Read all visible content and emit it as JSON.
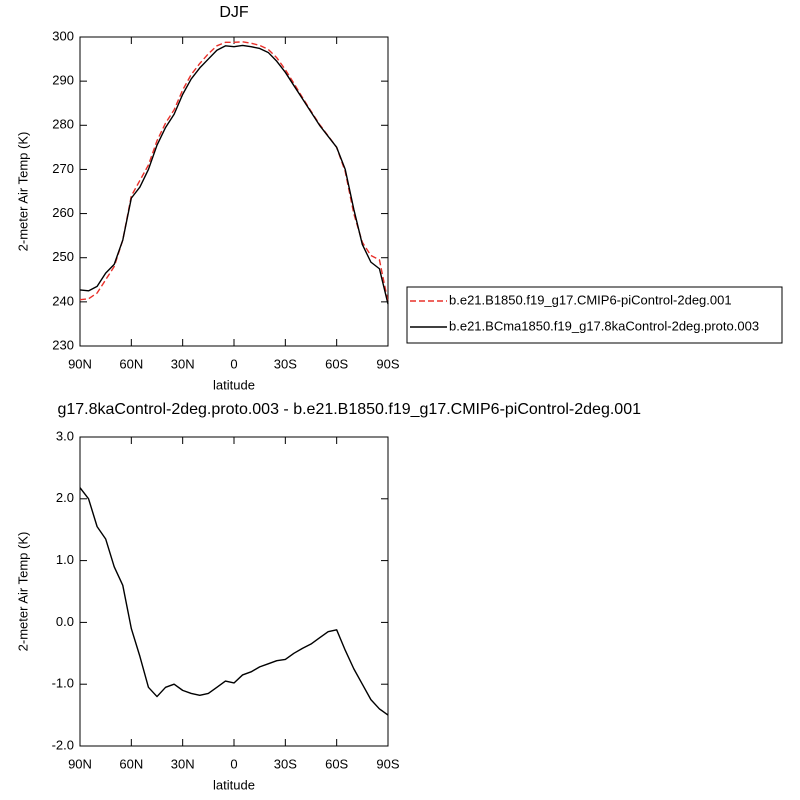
{
  "chart_data": [
    {
      "type": "line",
      "title": "DJF",
      "xlabel": "latitude",
      "ylabel": "2-meter Air Temp (K)",
      "x": [
        90,
        85,
        80,
        75,
        70,
        65,
        60,
        55,
        50,
        45,
        40,
        35,
        30,
        25,
        20,
        15,
        10,
        5,
        0,
        -5,
        -10,
        -15,
        -20,
        -25,
        -30,
        -35,
        -40,
        -45,
        -50,
        -55,
        -60,
        -65,
        -70,
        -75,
        -80,
        -85,
        -90
      ],
      "series": [
        {
          "name": "b.e21.B1850.f19_g17.CMIP6-piControl-2deg.001",
          "color": "#e8302a",
          "dashed": true,
          "values": [
            240.5,
            240.7,
            242,
            245,
            248,
            254,
            264,
            267.5,
            271,
            276.5,
            280.5,
            283.5,
            288,
            291.5,
            294,
            296.2,
            298,
            298.8,
            298.8,
            298.9,
            298.6,
            298.1,
            297.2,
            295.3,
            292.6,
            289.5,
            286.3,
            283.2,
            280.2,
            277.6,
            275,
            269.5,
            260,
            253.5,
            250.5,
            249.5,
            240
          ]
        },
        {
          "name": "b.e21.BCma1850.f19_g17.8kaControl-2deg.proto.003",
          "color": "#000000",
          "dashed": false,
          "values": [
            242.7,
            242.5,
            243.5,
            246.5,
            248.5,
            254,
            263.5,
            266,
            270,
            275.5,
            279.5,
            282.5,
            287,
            290.5,
            293,
            295,
            297,
            298,
            297.8,
            298.1,
            297.8,
            297.4,
            296.5,
            294.5,
            292,
            289,
            286,
            283,
            280,
            277.5,
            275,
            270,
            261,
            253,
            249,
            247.5,
            239.5
          ]
        }
      ],
      "xlim": [
        90,
        -90
      ],
      "xticks": [
        {
          "value": 90,
          "label": "90N"
        },
        {
          "value": 60,
          "label": "60N"
        },
        {
          "value": 30,
          "label": "30N"
        },
        0,
        {
          "value": -30,
          "label": "30S"
        },
        {
          "value": -60,
          "label": "60S"
        },
        {
          "value": -90,
          "label": "90S"
        }
      ],
      "ylim": [
        230,
        300
      ],
      "yticks": [
        230,
        240,
        250,
        260,
        270,
        280,
        290,
        300
      ],
      "legend": "right"
    },
    {
      "type": "line",
      "title": "g17.8kaControl-2deg.proto.003 - b.e21.B1850.f19_g17.CMIP6-piControl-2deg.001",
      "xlabel": "latitude",
      "ylabel": "2-meter Air Temp (K)",
      "x": [
        90,
        85,
        80,
        75,
        70,
        65,
        60,
        55,
        50,
        45,
        40,
        35,
        30,
        25,
        20,
        15,
        10,
        5,
        0,
        -5,
        -10,
        -15,
        -20,
        -25,
        -30,
        -35,
        -40,
        -45,
        -50,
        -55,
        -60,
        -65,
        -70,
        -75,
        -80,
        -85,
        -90
      ],
      "series": [
        {
          "color": "#000000",
          "dashed": false,
          "values": [
            2.18,
            2.0,
            1.55,
            1.35,
            0.9,
            0.6,
            -0.1,
            -0.55,
            -1.05,
            -1.2,
            -1.05,
            -1.0,
            -1.1,
            -1.15,
            -1.18,
            -1.15,
            -1.05,
            -0.95,
            -0.98,
            -0.85,
            -0.8,
            -0.72,
            -0.67,
            -0.62,
            -0.6,
            -0.5,
            -0.42,
            -0.35,
            -0.25,
            -0.15,
            -0.12,
            -0.45,
            -0.75,
            -1.0,
            -1.25,
            -1.4,
            -1.5
          ]
        }
      ],
      "xlim": [
        90,
        -90
      ],
      "xticks": [
        {
          "value": 90,
          "label": "90N"
        },
        {
          "value": 60,
          "label": "60N"
        },
        {
          "value": 30,
          "label": "30N"
        },
        0,
        {
          "value": -30,
          "label": "30S"
        },
        {
          "value": -60,
          "label": "60S"
        },
        {
          "value": -90,
          "label": "90S"
        }
      ],
      "ylim": [
        -2.0,
        3.0
      ],
      "yticks": [
        {
          "value": -2.0,
          "label": "-2.0"
        },
        {
          "value": -1.0,
          "label": "-1.0"
        },
        {
          "value": 0.0,
          "label": "0.0"
        },
        {
          "value": 1.0,
          "label": "1.0"
        },
        {
          "value": 2.0,
          "label": "2.0"
        },
        {
          "value": 3.0,
          "label": "3.0"
        }
      ]
    }
  ]
}
